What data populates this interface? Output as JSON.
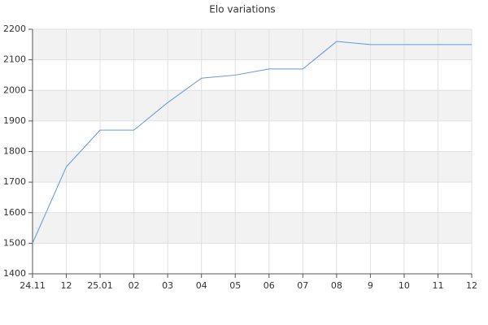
{
  "chart_data": {
    "type": "line",
    "title": "Elo variations",
    "categories": [
      "24.11",
      "12",
      "25.01",
      "02",
      "03",
      "04",
      "05",
      "06",
      "07",
      "08",
      "9",
      "10",
      "11",
      "12"
    ],
    "series": [
      {
        "name": "Elo",
        "color": "#6495e0",
        "values": [
          1500,
          1750,
          1870,
          1870,
          1960,
          2040,
          2050,
          2070,
          2070,
          2160,
          2150,
          2150,
          2150,
          2150
        ]
      }
    ],
    "ylim": [
      1400,
      2200
    ],
    "yticks": [
      1400,
      1500,
      1600,
      1700,
      1800,
      1900,
      2000,
      2100,
      2200
    ],
    "grid": true,
    "alternate_bands": true,
    "legend": false
  }
}
